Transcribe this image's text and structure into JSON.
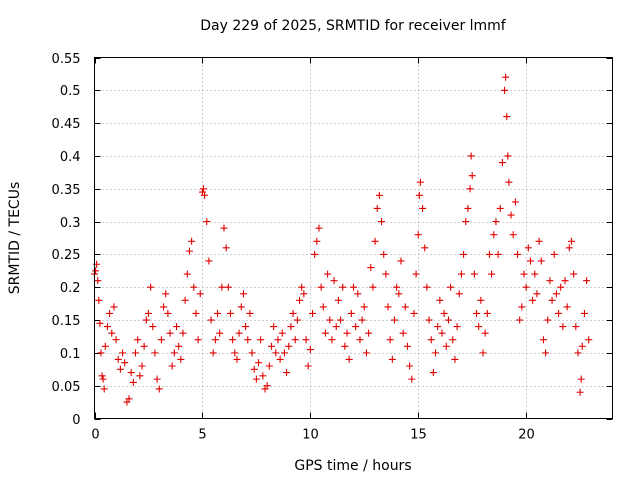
{
  "chart_data": {
    "type": "scatter",
    "title": "Day 229 of 2025, SRMTID for receiver lmmf",
    "xlabel": "GPS time / hours",
    "ylabel": "SRMTID / TECUs",
    "xlim": [
      0,
      24.0
    ],
    "ylim": [
      0,
      0.55
    ],
    "xticks": [
      0,
      5,
      10,
      15,
      20
    ],
    "xtick_labels": [
      "0",
      "5",
      "10",
      "15",
      "20"
    ],
    "yticks": [
      0,
      0.05,
      0.1,
      0.15,
      0.2,
      0.25,
      0.3,
      0.35,
      0.4,
      0.45,
      0.5,
      0.55
    ],
    "ytick_labels": [
      "0",
      "0.05",
      "0.1",
      "0.15",
      "0.2",
      "0.25",
      "0.3",
      "0.35",
      "0.4",
      "0.45",
      "0.5",
      "0.55"
    ],
    "grid": true,
    "marker": "plus",
    "color": "#e00000",
    "series": [
      {
        "name": "SRMTID",
        "points": [
          [
            0.0,
            0.22
          ],
          [
            0.05,
            0.225
          ],
          [
            0.1,
            0.235
          ],
          [
            0.15,
            0.21
          ],
          [
            0.2,
            0.18
          ],
          [
            0.25,
            0.145
          ],
          [
            0.3,
            0.1
          ],
          [
            0.35,
            0.065
          ],
          [
            0.4,
            0.06
          ],
          [
            0.45,
            0.045
          ],
          [
            0.5,
            0.11
          ],
          [
            0.6,
            0.14
          ],
          [
            0.7,
            0.16
          ],
          [
            0.8,
            0.13
          ],
          [
            0.9,
            0.17
          ],
          [
            1.0,
            0.12
          ],
          [
            1.1,
            0.09
          ],
          [
            1.2,
            0.075
          ],
          [
            1.3,
            0.1
          ],
          [
            1.4,
            0.085
          ],
          [
            1.5,
            0.025
          ],
          [
            1.6,
            0.03
          ],
          [
            1.7,
            0.07
          ],
          [
            1.8,
            0.055
          ],
          [
            1.9,
            0.1
          ],
          [
            2.0,
            0.12
          ],
          [
            2.1,
            0.065
          ],
          [
            2.2,
            0.08
          ],
          [
            2.3,
            0.11
          ],
          [
            2.4,
            0.15
          ],
          [
            2.5,
            0.16
          ],
          [
            2.6,
            0.2
          ],
          [
            2.7,
            0.14
          ],
          [
            2.8,
            0.1
          ],
          [
            2.9,
            0.06
          ],
          [
            3.0,
            0.045
          ],
          [
            3.1,
            0.12
          ],
          [
            3.2,
            0.17
          ],
          [
            3.3,
            0.19
          ],
          [
            3.4,
            0.16
          ],
          [
            3.5,
            0.13
          ],
          [
            3.6,
            0.08
          ],
          [
            3.7,
            0.1
          ],
          [
            3.8,
            0.14
          ],
          [
            3.9,
            0.11
          ],
          [
            4.0,
            0.09
          ],
          [
            4.1,
            0.13
          ],
          [
            4.2,
            0.18
          ],
          [
            4.3,
            0.22
          ],
          [
            4.4,
            0.255
          ],
          [
            4.5,
            0.27
          ],
          [
            4.6,
            0.2
          ],
          [
            4.7,
            0.16
          ],
          [
            4.8,
            0.12
          ],
          [
            4.9,
            0.19
          ],
          [
            5.0,
            0.345
          ],
          [
            5.05,
            0.35
          ],
          [
            5.1,
            0.34
          ],
          [
            5.2,
            0.3
          ],
          [
            5.3,
            0.24
          ],
          [
            5.4,
            0.15
          ],
          [
            5.5,
            0.1
          ],
          [
            5.6,
            0.12
          ],
          [
            5.7,
            0.16
          ],
          [
            5.8,
            0.13
          ],
          [
            5.9,
            0.2
          ],
          [
            6.0,
            0.29
          ],
          [
            6.1,
            0.26
          ],
          [
            6.2,
            0.2
          ],
          [
            6.3,
            0.16
          ],
          [
            6.4,
            0.12
          ],
          [
            6.5,
            0.1
          ],
          [
            6.6,
            0.09
          ],
          [
            6.7,
            0.13
          ],
          [
            6.8,
            0.17
          ],
          [
            6.9,
            0.19
          ],
          [
            7.0,
            0.14
          ],
          [
            7.1,
            0.12
          ],
          [
            7.2,
            0.16
          ],
          [
            7.3,
            0.1
          ],
          [
            7.4,
            0.075
          ],
          [
            7.5,
            0.06
          ],
          [
            7.6,
            0.085
          ],
          [
            7.7,
            0.12
          ],
          [
            7.8,
            0.065
          ],
          [
            7.9,
            0.045
          ],
          [
            8.0,
            0.05
          ],
          [
            8.1,
            0.08
          ],
          [
            8.2,
            0.11
          ],
          [
            8.3,
            0.14
          ],
          [
            8.4,
            0.1
          ],
          [
            8.5,
            0.12
          ],
          [
            8.6,
            0.09
          ],
          [
            8.7,
            0.13
          ],
          [
            8.8,
            0.1
          ],
          [
            8.9,
            0.07
          ],
          [
            9.0,
            0.11
          ],
          [
            9.1,
            0.14
          ],
          [
            9.2,
            0.16
          ],
          [
            9.3,
            0.12
          ],
          [
            9.4,
            0.15
          ],
          [
            9.5,
            0.18
          ],
          [
            9.6,
            0.2
          ],
          [
            9.7,
            0.19
          ],
          [
            9.8,
            0.12
          ],
          [
            9.9,
            0.08
          ],
          [
            10.0,
            0.105
          ],
          [
            10.1,
            0.16
          ],
          [
            10.2,
            0.25
          ],
          [
            10.3,
            0.27
          ],
          [
            10.4,
            0.29
          ],
          [
            10.5,
            0.2
          ],
          [
            10.6,
            0.17
          ],
          [
            10.7,
            0.13
          ],
          [
            10.8,
            0.22
          ],
          [
            10.9,
            0.15
          ],
          [
            11.0,
            0.12
          ],
          [
            11.1,
            0.21
          ],
          [
            11.2,
            0.14
          ],
          [
            11.3,
            0.18
          ],
          [
            11.4,
            0.15
          ],
          [
            11.5,
            0.2
          ],
          [
            11.6,
            0.11
          ],
          [
            11.7,
            0.13
          ],
          [
            11.8,
            0.09
          ],
          [
            11.9,
            0.16
          ],
          [
            12.0,
            0.2
          ],
          [
            12.1,
            0.14
          ],
          [
            12.2,
            0.19
          ],
          [
            12.3,
            0.12
          ],
          [
            12.4,
            0.15
          ],
          [
            12.5,
            0.17
          ],
          [
            12.6,
            0.1
          ],
          [
            12.7,
            0.13
          ],
          [
            12.8,
            0.23
          ],
          [
            12.9,
            0.2
          ],
          [
            13.0,
            0.27
          ],
          [
            13.1,
            0.32
          ],
          [
            13.2,
            0.34
          ],
          [
            13.3,
            0.3
          ],
          [
            13.4,
            0.25
          ],
          [
            13.5,
            0.22
          ],
          [
            13.6,
            0.17
          ],
          [
            13.7,
            0.12
          ],
          [
            13.8,
            0.09
          ],
          [
            13.9,
            0.15
          ],
          [
            14.0,
            0.2
          ],
          [
            14.1,
            0.19
          ],
          [
            14.2,
            0.24
          ],
          [
            14.3,
            0.13
          ],
          [
            14.4,
            0.17
          ],
          [
            14.5,
            0.11
          ],
          [
            14.6,
            0.08
          ],
          [
            14.7,
            0.06
          ],
          [
            14.8,
            0.16
          ],
          [
            14.9,
            0.22
          ],
          [
            15.0,
            0.28
          ],
          [
            15.05,
            0.34
          ],
          [
            15.1,
            0.36
          ],
          [
            15.2,
            0.32
          ],
          [
            15.3,
            0.26
          ],
          [
            15.4,
            0.2
          ],
          [
            15.5,
            0.15
          ],
          [
            15.6,
            0.12
          ],
          [
            15.7,
            0.07
          ],
          [
            15.8,
            0.1
          ],
          [
            15.9,
            0.14
          ],
          [
            16.0,
            0.18
          ],
          [
            16.1,
            0.13
          ],
          [
            16.2,
            0.16
          ],
          [
            16.3,
            0.11
          ],
          [
            16.4,
            0.15
          ],
          [
            16.5,
            0.2
          ],
          [
            16.6,
            0.12
          ],
          [
            16.7,
            0.09
          ],
          [
            16.8,
            0.14
          ],
          [
            16.9,
            0.19
          ],
          [
            17.0,
            0.22
          ],
          [
            17.1,
            0.25
          ],
          [
            17.2,
            0.3
          ],
          [
            17.3,
            0.32
          ],
          [
            17.4,
            0.35
          ],
          [
            17.45,
            0.4
          ],
          [
            17.5,
            0.37
          ],
          [
            17.6,
            0.22
          ],
          [
            17.7,
            0.16
          ],
          [
            17.8,
            0.14
          ],
          [
            17.9,
            0.18
          ],
          [
            18.0,
            0.1
          ],
          [
            18.1,
            0.13
          ],
          [
            18.2,
            0.16
          ],
          [
            18.3,
            0.25
          ],
          [
            18.4,
            0.22
          ],
          [
            18.5,
            0.28
          ],
          [
            18.6,
            0.3
          ],
          [
            18.7,
            0.25
          ],
          [
            18.8,
            0.32
          ],
          [
            18.9,
            0.39
          ],
          [
            19.0,
            0.5
          ],
          [
            19.05,
            0.52
          ],
          [
            19.1,
            0.46
          ],
          [
            19.15,
            0.4
          ],
          [
            19.2,
            0.36
          ],
          [
            19.3,
            0.31
          ],
          [
            19.4,
            0.28
          ],
          [
            19.5,
            0.33
          ],
          [
            19.6,
            0.25
          ],
          [
            19.7,
            0.15
          ],
          [
            19.8,
            0.17
          ],
          [
            19.9,
            0.22
          ],
          [
            20.0,
            0.2
          ],
          [
            20.1,
            0.26
          ],
          [
            20.2,
            0.24
          ],
          [
            20.3,
            0.18
          ],
          [
            20.4,
            0.22
          ],
          [
            20.5,
            0.19
          ],
          [
            20.6,
            0.27
          ],
          [
            20.7,
            0.24
          ],
          [
            20.8,
            0.12
          ],
          [
            20.9,
            0.1
          ],
          [
            21.0,
            0.15
          ],
          [
            21.1,
            0.21
          ],
          [
            21.2,
            0.18
          ],
          [
            21.3,
            0.25
          ],
          [
            21.4,
            0.19
          ],
          [
            21.5,
            0.16
          ],
          [
            21.6,
            0.2
          ],
          [
            21.7,
            0.14
          ],
          [
            21.8,
            0.21
          ],
          [
            21.9,
            0.17
          ],
          [
            22.0,
            0.26
          ],
          [
            22.1,
            0.27
          ],
          [
            22.2,
            0.22
          ],
          [
            22.3,
            0.14
          ],
          [
            22.4,
            0.1
          ],
          [
            22.5,
            0.04
          ],
          [
            22.55,
            0.06
          ],
          [
            22.6,
            0.11
          ],
          [
            22.7,
            0.16
          ],
          [
            22.8,
            0.21
          ],
          [
            22.9,
            0.12
          ]
        ]
      }
    ]
  }
}
